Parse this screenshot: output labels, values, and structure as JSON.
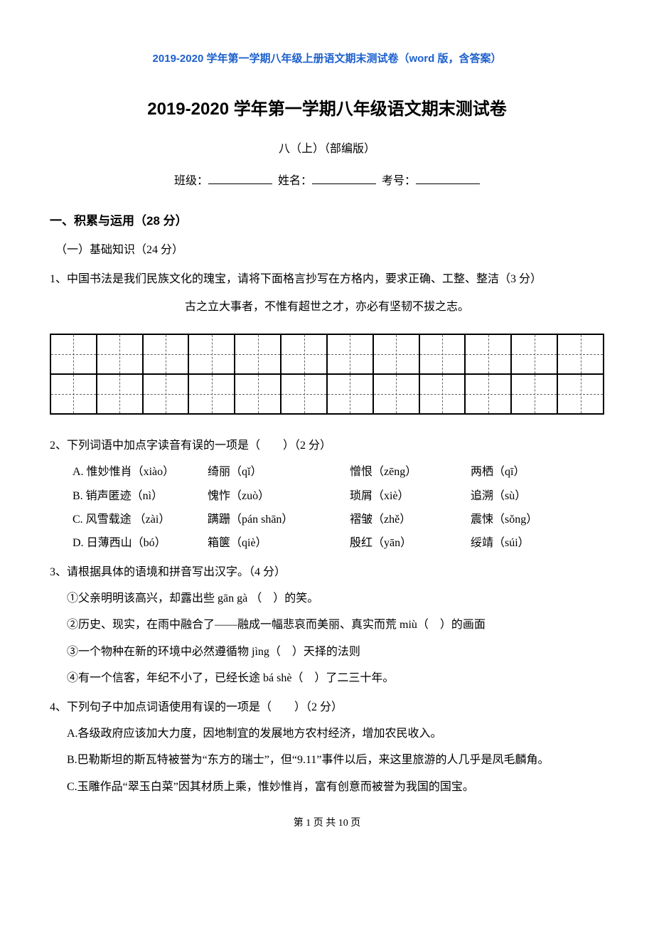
{
  "docHeader": "2019-2020 学年第一学期八年级上册语文期末测试卷（word 版，含答案）",
  "mainTitle": "2019-2020 学年第一学期八年级语文期末测试卷",
  "subtitle": "八（上）（部编版）",
  "labels": {
    "class": "班级：",
    "name": "姓名：",
    "examNo": "考号："
  },
  "section1Title": "一、积累与运用（28 分）",
  "subsection1": "（一）基础知识（24 分）",
  "q1": {
    "stem": "1、中国书法是我们民族文化的瑰宝，请将下面格言抄写在方格内，要求正确、工整、整洁（3 分）",
    "quote": "古之立大事者，不惟有超世之才，亦必有坚韧不拔之志。",
    "gridCols": 12,
    "gridRows": 2
  },
  "q2": {
    "stem": "2、下列词语中加点字读音有误的一项是（　　）（2 分）",
    "opts": [
      {
        "L": "A.",
        "a": "惟妙惟肖（xiào）",
        "b": "绮丽（qǐ）",
        "c": "憎恨（zēng）",
        "d": "两栖（qī）"
      },
      {
        "L": "B.",
        "a": "销声匿迹（nì）",
        "b": "愧怍（zuò）",
        "c": "琐屑（xiè）",
        "d": "追溯（sù）"
      },
      {
        "L": "C.",
        "a": "风雪载途 （zài）",
        "b": "蹒跚（pán shān）",
        "c": "褶皱（zhě）",
        "d": "震悚（sǒng）"
      },
      {
        "L": "D.",
        "a": "日薄西山（bó）",
        "b": "箱箧（qiè）",
        "c": "殷红（yān）",
        "d": "绥靖（súi）"
      }
    ]
  },
  "q3": {
    "stem": "3、请根据具体的语境和拼音写出汉字。（4 分）",
    "items": [
      "①父亲明明该高兴，却露出些 gān gà （　）的笑。",
      "②历史、现实，在雨中融合了——融成一幅悲哀而美丽、真实而荒 miù（　）的画面",
      "③一个物种在新的环境中必然遵循物 jìng（　）天择的法则",
      "④有一个信客，年纪不小了，已经长途 bá shè（　）了二三十年。"
    ]
  },
  "q4": {
    "stem": "4、下列句子中加点词语使用有误的一项是（　　）（2 分）",
    "opts": [
      "A.各级政府应该加大力度，因地制宜的发展地方农村经济，增加农民收入。",
      "B.巴勒斯坦的斯瓦特被誉为“东方的瑞士”，但“9.11”事件以后，来这里旅游的人几乎是凤毛麟角。",
      "C.玉雕作品“翠玉白菜”因其材质上乘，惟妙惟肖，富有创意而被誉为我国的国宝。"
    ]
  },
  "footer": "第 1 页 共 10 页",
  "style": {
    "pageWidth": 920,
    "pageHeight": 1302,
    "bg": "#ffffff",
    "headerColor": "#1b5fce",
    "textColor": "#000000",
    "titleFontSize": 24,
    "bodyFontSize": 16
  }
}
